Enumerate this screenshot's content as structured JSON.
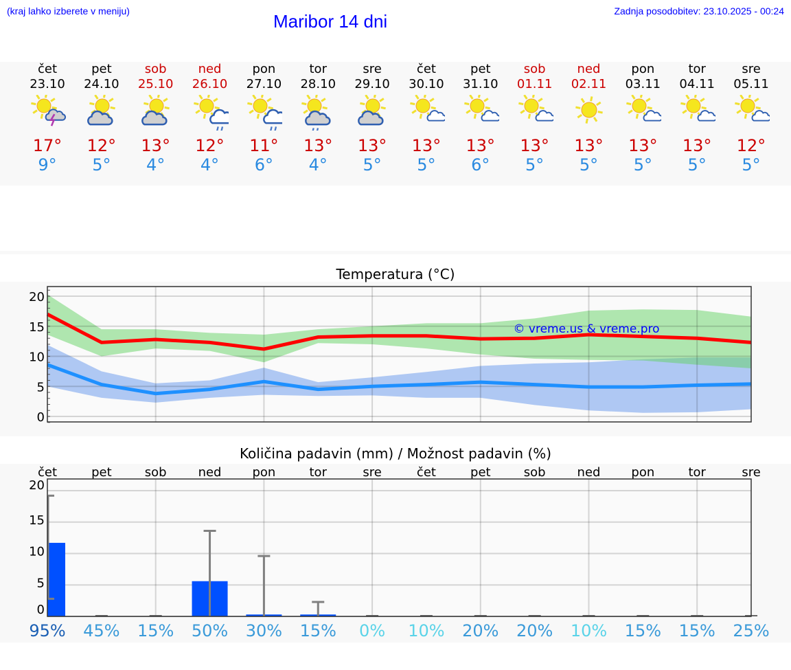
{
  "header": {
    "hint": "(kraj lahko izberete v meniju)",
    "title": "Maribor 14 dni",
    "updated": "Zadnja posodobitev: 23.10.2025 - 00:24"
  },
  "colors": {
    "max": "#cc0000",
    "min": "#2a8ae0",
    "link": "#0000ff",
    "bar": "#0050ff"
  },
  "days": [
    {
      "name": "čet",
      "date": "23.10",
      "weekend": false,
      "icon": "sun-thunderstorm-icon",
      "max": "17°",
      "min": "9°"
    },
    {
      "name": "pet",
      "date": "24.10",
      "weekend": false,
      "icon": "sun-cloud-icon",
      "max": "12°",
      "min": "5°"
    },
    {
      "name": "sob",
      "date": "25.10",
      "weekend": true,
      "icon": "sun-cloud-icon",
      "max": "13°",
      "min": "4°"
    },
    {
      "name": "ned",
      "date": "26.10",
      "weekend": true,
      "icon": "sun-cloud-rain-icon",
      "max": "12°",
      "min": "4°"
    },
    {
      "name": "pon",
      "date": "27.10",
      "weekend": false,
      "icon": "sun-cloud-rain-icon",
      "max": "11°",
      "min": "6°"
    },
    {
      "name": "tor",
      "date": "28.10",
      "weekend": false,
      "icon": "sun-grey-cloud-rain-icon",
      "max": "13°",
      "min": "4°"
    },
    {
      "name": "sre",
      "date": "29.10",
      "weekend": false,
      "icon": "sun-cloud-icon",
      "max": "13°",
      "min": "5°"
    },
    {
      "name": "čet",
      "date": "30.10",
      "weekend": false,
      "icon": "sun-small-cloud-icon",
      "max": "13°",
      "min": "5°"
    },
    {
      "name": "pet",
      "date": "31.10",
      "weekend": false,
      "icon": "sun-small-cloud-icon",
      "max": "13°",
      "min": "6°"
    },
    {
      "name": "sob",
      "date": "01.11",
      "weekend": true,
      "icon": "sun-small-cloud-icon",
      "max": "13°",
      "min": "5°"
    },
    {
      "name": "ned",
      "date": "02.11",
      "weekend": true,
      "icon": "sun-icon",
      "max": "13°",
      "min": "5°"
    },
    {
      "name": "pon",
      "date": "03.11",
      "weekend": false,
      "icon": "sun-small-cloud-icon",
      "max": "13°",
      "min": "5°"
    },
    {
      "name": "tor",
      "date": "04.11",
      "weekend": false,
      "icon": "sun-small-cloud-icon",
      "max": "13°",
      "min": "5°"
    },
    {
      "name": "sre",
      "date": "05.11",
      "weekend": false,
      "icon": "sun-small-cloud-icon",
      "max": "12°",
      "min": "5°"
    }
  ],
  "chart_data": [
    {
      "type": "line",
      "title": "Temperatura (°C)",
      "ylim": [
        -1,
        21.5
      ],
      "yticks": [
        0,
        5,
        10,
        15,
        20
      ],
      "grid": true,
      "watermark": "© vreme.us & vreme.pro",
      "series": [
        {
          "name": "max",
          "color": "#ff0000",
          "values": [
            17,
            12.3,
            12.8,
            12.3,
            11.2,
            13.2,
            13.4,
            13.4,
            12.9,
            13,
            13.6,
            13.3,
            13,
            12.3
          ],
          "band_high": [
            20.3,
            14.5,
            14.5,
            13.9,
            13.6,
            14.5,
            15,
            15.5,
            15.5,
            16.3,
            17.6,
            17.8,
            17.7,
            16.6
          ],
          "band_low": [
            13.6,
            10,
            11.3,
            10.9,
            9,
            12.2,
            12,
            11.3,
            10.3,
            9.6,
            9.4,
            9.3,
            8.6,
            8
          ]
        },
        {
          "name": "min",
          "color": "#1e90ff",
          "values": [
            8.6,
            5.3,
            3.8,
            4.5,
            5.8,
            4.5,
            5,
            5.3,
            5.7,
            5.3,
            4.9,
            4.9,
            5.2,
            5.4
          ],
          "band_high": [
            11.9,
            7.5,
            5.5,
            6,
            8.1,
            5.7,
            6.5,
            7.4,
            8.4,
            8.8,
            9,
            9.5,
            9.8,
            9.8
          ],
          "band_low": [
            5,
            3.1,
            2.3,
            3.1,
            3.6,
            3.4,
            3.5,
            3.1,
            3.1,
            1.9,
            1,
            0.6,
            0.7,
            1.2
          ]
        }
      ]
    },
    {
      "type": "bar",
      "title": "Količina padavin (mm) / Možnost padavin (%)",
      "categories": [
        "čet",
        "pet",
        "sob",
        "ned",
        "pon",
        "tor",
        "sre",
        "čet",
        "pet",
        "sob",
        "ned",
        "pon",
        "tor",
        "sre"
      ],
      "ylim": [
        0,
        21
      ],
      "yticks": [
        0,
        5,
        10,
        15,
        20
      ],
      "values": [
        11.7,
        0,
        0,
        5.6,
        0.3,
        0.3,
        0,
        0,
        0,
        0,
        0,
        0,
        0,
        0
      ],
      "err_low": [
        2.8,
        0,
        0,
        0,
        0,
        0,
        0,
        0,
        0,
        0,
        0,
        0,
        0,
        0
      ],
      "err_high": [
        19.2,
        0,
        0,
        13.6,
        9.6,
        2.3,
        0,
        0,
        0,
        0,
        0,
        0,
        0,
        0
      ],
      "probability": [
        "95%",
        "45%",
        "15%",
        "50%",
        "30%",
        "15%",
        "0%",
        "10%",
        "20%",
        "20%",
        "10%",
        "15%",
        "15%",
        "25%"
      ],
      "probability_values": [
        95,
        45,
        15,
        50,
        30,
        15,
        0,
        10,
        20,
        20,
        10,
        15,
        15,
        25
      ]
    }
  ]
}
